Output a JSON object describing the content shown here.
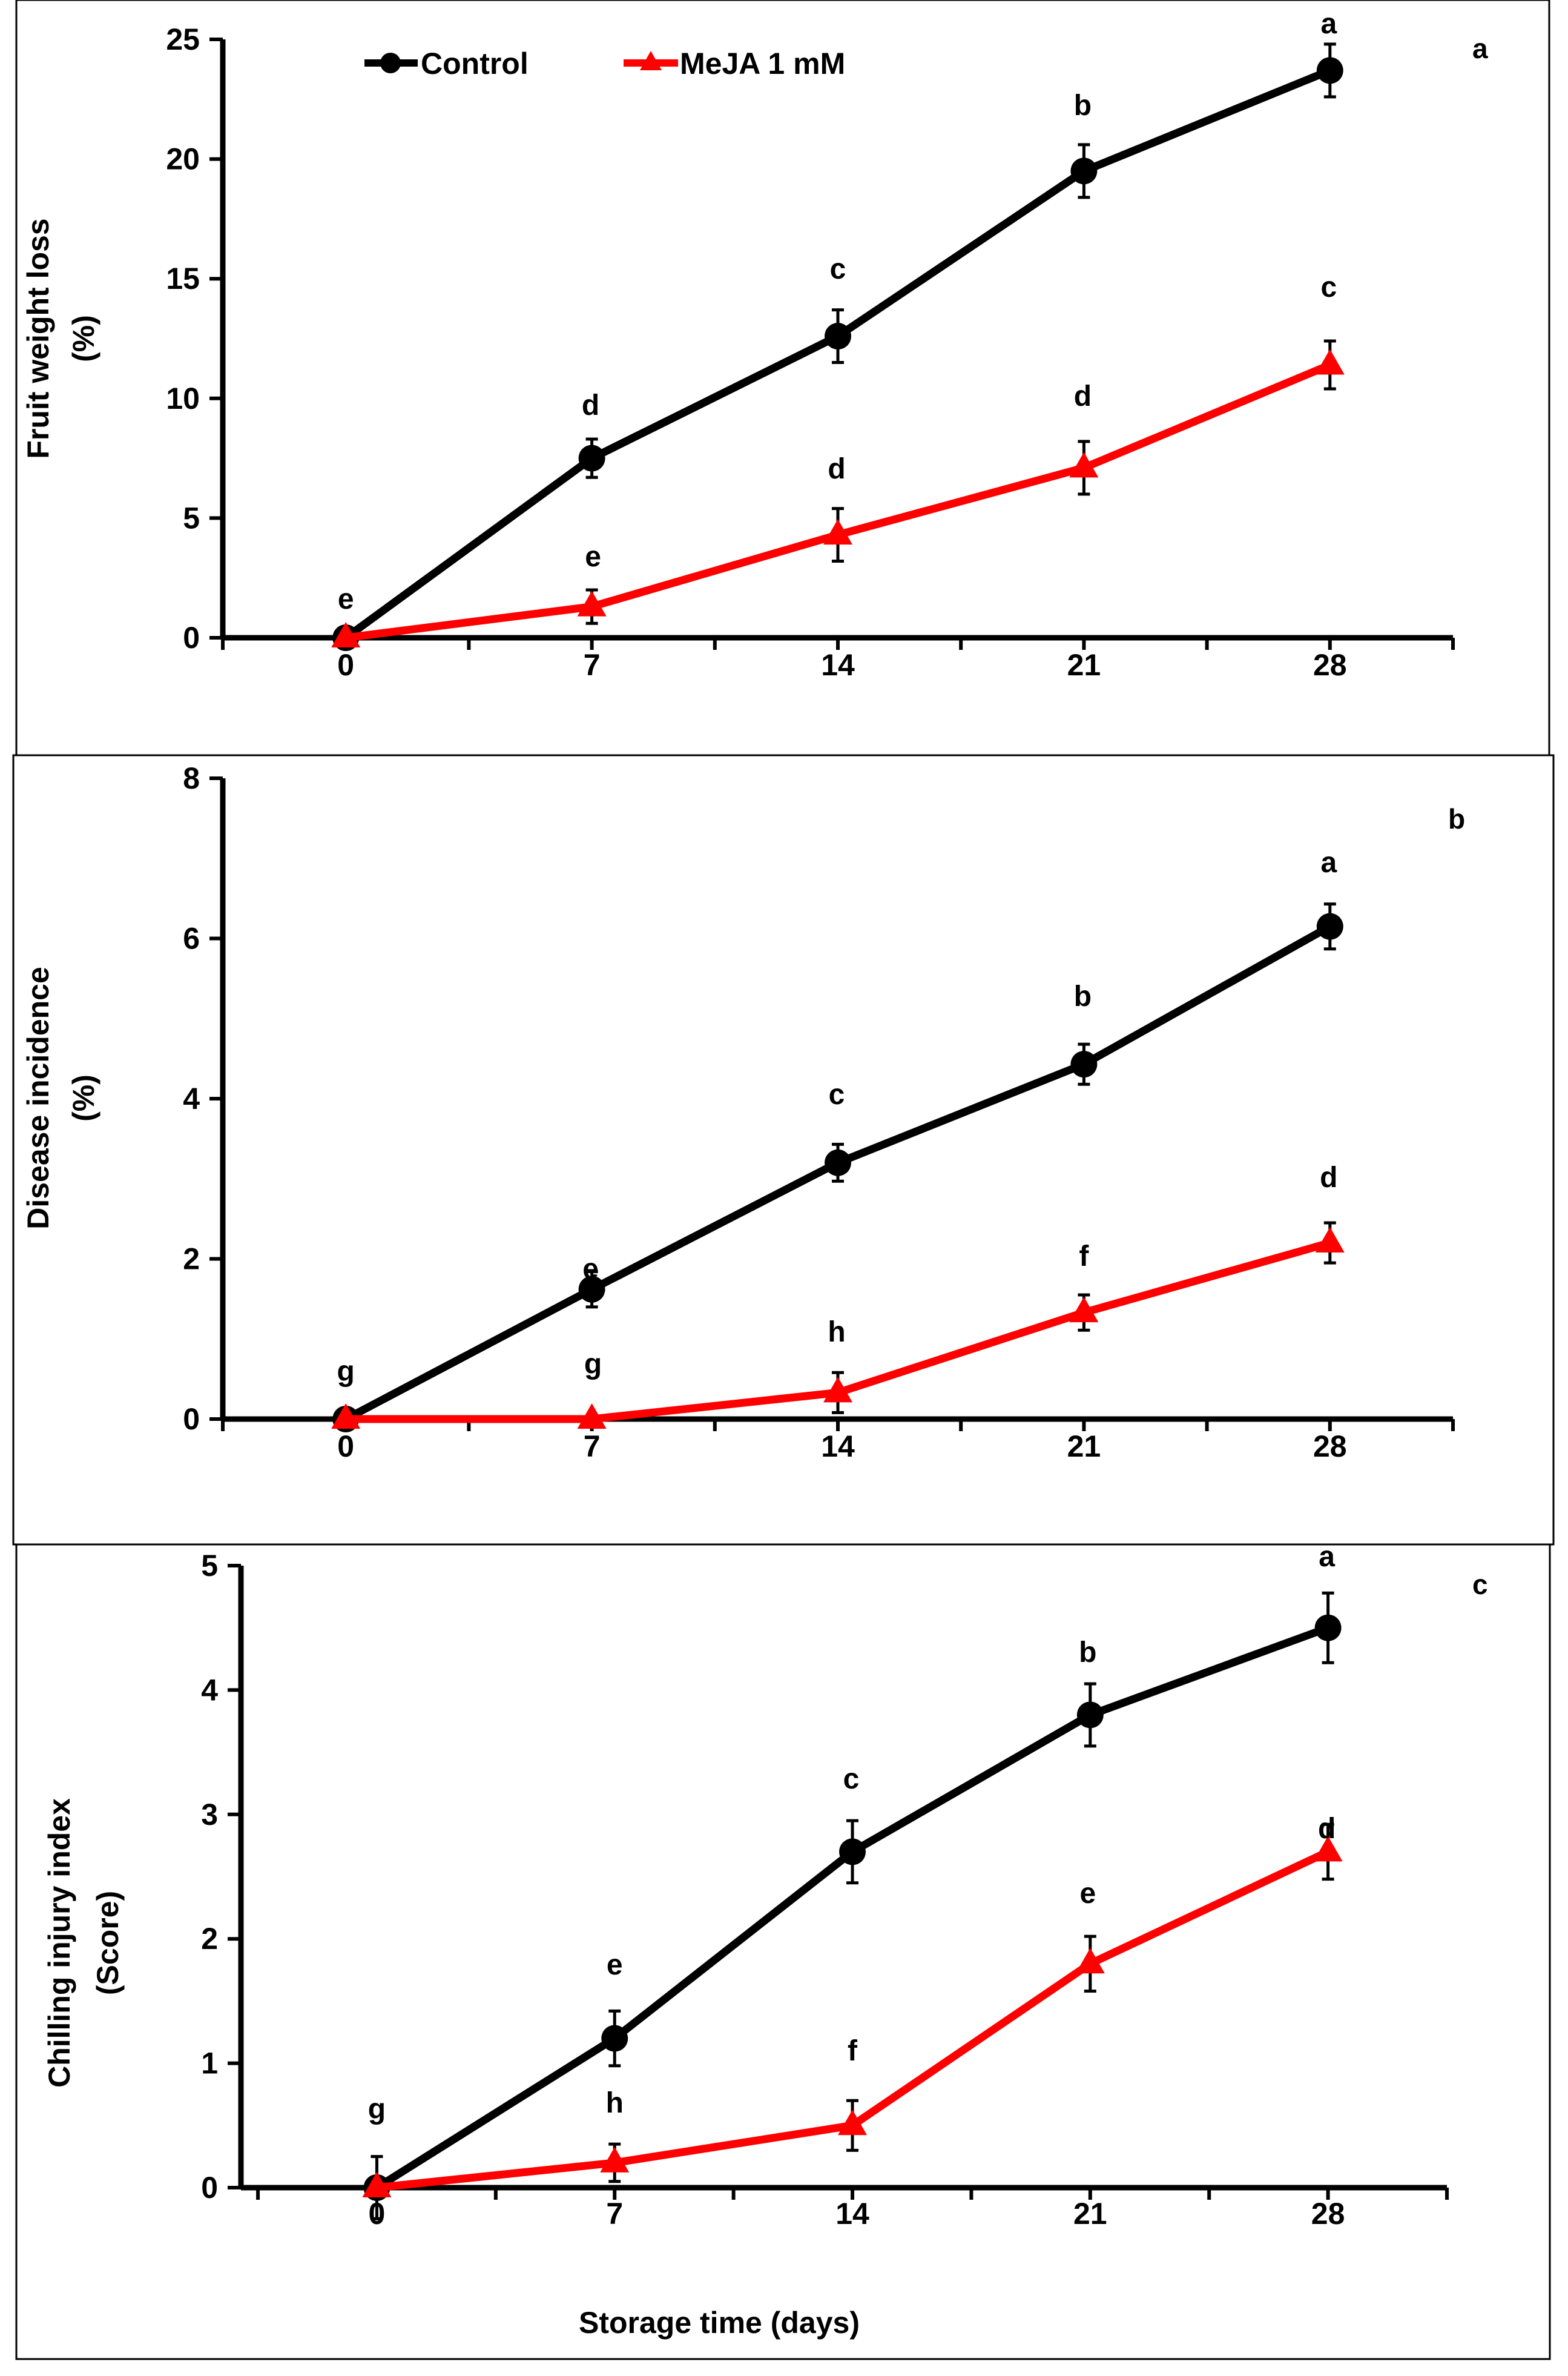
{
  "figure": {
    "xlabel": "Storage time (days)",
    "legend_position": "top-left"
  },
  "chart_data": [
    {
      "type": "line",
      "panel_label": "a",
      "title": "",
      "xlabel": "",
      "ylabel": [
        "Fruit weight loss",
        "(%)"
      ],
      "x": [
        0,
        7,
        14,
        21,
        28
      ],
      "xticks": [
        "0",
        "7",
        "14",
        "21",
        "28"
      ],
      "xlim": [
        -3.5,
        31.5
      ],
      "ylim": [
        0,
        25
      ],
      "yticks": [
        "0",
        "5",
        "10",
        "15",
        "20",
        "25"
      ],
      "grid": false,
      "series": [
        {
          "name": "Control",
          "color": "#000000",
          "marker": "circle",
          "values": [
            0,
            7.5,
            12.6,
            19.5,
            23.7
          ],
          "errors": [
            0,
            0.8,
            1.1,
            1.1,
            1.1
          ],
          "letters": [
            "e",
            "d",
            "c",
            "b",
            "a"
          ]
        },
        {
          "name": "MeJA 1 mM",
          "color": "#ff0000",
          "marker": "triangle",
          "values": [
            0,
            1.3,
            4.3,
            7.1,
            11.4
          ],
          "errors": [
            0,
            0.7,
            1.1,
            1.1,
            1.0
          ],
          "letters": [
            "",
            "e",
            "d",
            "d",
            "c"
          ]
        }
      ]
    },
    {
      "type": "line",
      "panel_label": "b",
      "title": "",
      "xlabel": "",
      "ylabel": [
        "Disease incidence",
        "(%)"
      ],
      "x": [
        0,
        7,
        14,
        21,
        28
      ],
      "xticks": [
        "0",
        "7",
        "14",
        "21",
        "28"
      ],
      "xlim": [
        -3.5,
        31.5
      ],
      "ylim": [
        0,
        8
      ],
      "yticks": [
        "0",
        "2",
        "4",
        "6",
        "8"
      ],
      "grid": false,
      "series": [
        {
          "name": "Control",
          "color": "#000000",
          "marker": "circle",
          "values": [
            0,
            1.62,
            3.2,
            4.43,
            6.15
          ],
          "errors": [
            0,
            0.22,
            0.23,
            0.25,
            0.28
          ],
          "letters": [
            "g",
            "e",
            "c",
            "b",
            "a"
          ]
        },
        {
          "name": "MeJA 1 mM",
          "color": "#ff0000",
          "marker": "triangle",
          "values": [
            0,
            0,
            0.33,
            1.33,
            2.2
          ],
          "errors": [
            0,
            0,
            0.25,
            0.22,
            0.25
          ],
          "letters": [
            "",
            "g",
            "h",
            "f",
            "d"
          ]
        }
      ]
    },
    {
      "type": "line",
      "panel_label": "c",
      "title": "",
      "xlabel": "Storage time (days)",
      "ylabel": [
        "Chilling injury index",
        "(Score)"
      ],
      "x": [
        0,
        7,
        14,
        21,
        28
      ],
      "xticks": [
        "0",
        "7",
        "14",
        "21",
        "28"
      ],
      "xlim": [
        -4,
        31.5
      ],
      "ylim": [
        0,
        5
      ],
      "yticks": [
        "0",
        "1",
        "2",
        "3",
        "4",
        "5"
      ],
      "grid": false,
      "series": [
        {
          "name": "Control",
          "color": "#000000",
          "marker": "circle",
          "values": [
            0,
            1.2,
            2.7,
            3.8,
            4.5
          ],
          "errors": [
            0.25,
            0.22,
            0.25,
            0.25,
            0.28
          ],
          "letters": [
            "g",
            "e",
            "c",
            "b",
            "a"
          ]
        },
        {
          "name": "MeJA 1 mM",
          "color": "#ff0000",
          "marker": "triangle",
          "values": [
            0,
            0.2,
            0.5,
            1.8,
            2.7
          ],
          "errors": [
            0,
            0.15,
            0.2,
            0.22,
            0.22
          ],
          "letters": [
            "",
            "h",
            "f",
            "e",
            "d"
          ]
        }
      ]
    }
  ]
}
